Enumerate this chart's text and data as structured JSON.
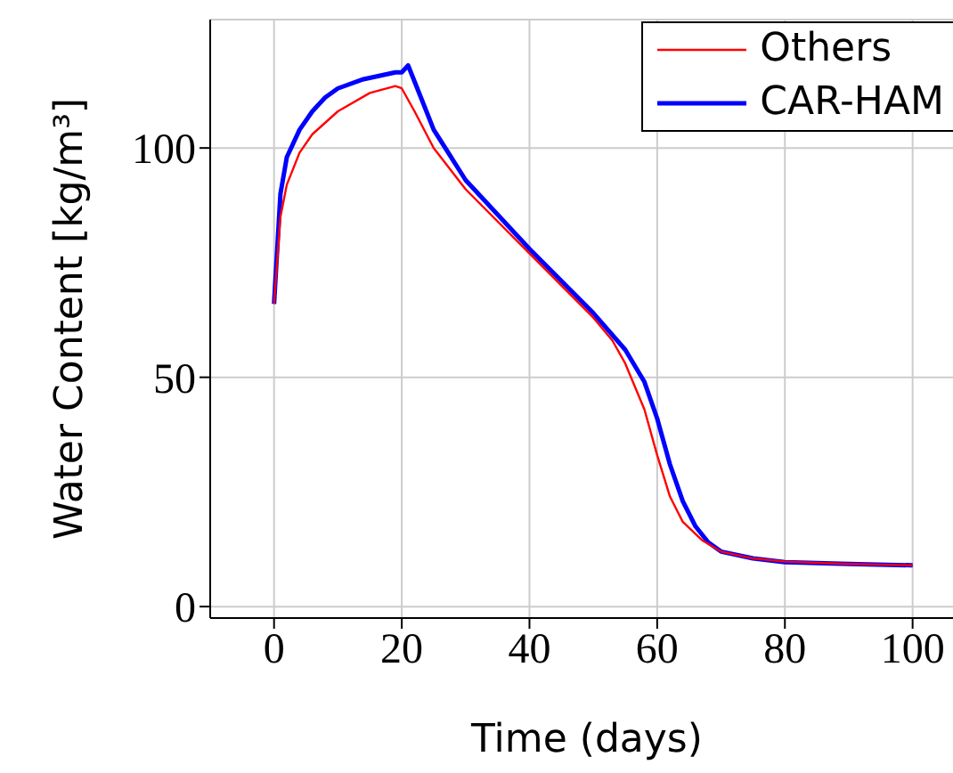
{
  "chart_data": {
    "type": "line",
    "xlabel": "Time (days)",
    "ylabel": "Water Content [kg/m³]",
    "xlim": [
      -10,
      108
    ],
    "ylim": [
      -2.5,
      128
    ],
    "xticks": [
      0,
      20,
      40,
      60,
      80,
      100
    ],
    "yticks": [
      0,
      50,
      100
    ],
    "grid": true,
    "legend": "top right",
    "marker": "none",
    "line_style": "solid",
    "series": [
      {
        "name": "Others",
        "color": "#ff0000",
        "x": [
          0,
          1,
          2,
          4,
          6,
          10,
          15,
          19,
          20,
          22,
          25,
          30,
          40,
          50,
          53,
          55,
          58,
          60,
          62,
          64,
          67,
          70,
          75,
          80,
          90,
          100
        ],
        "values": [
          66,
          85,
          92,
          99,
          103,
          108,
          112,
          113.5,
          113,
          108,
          100,
          91,
          77,
          63,
          58,
          53,
          43,
          33,
          24,
          18.5,
          14.5,
          12,
          10.5,
          9.8,
          9.3,
          9
        ]
      },
      {
        "name": "CAR-HAM",
        "color": "#0000ff",
        "x": [
          0,
          1,
          2,
          4,
          6,
          8,
          10,
          14,
          19,
          20,
          21,
          23,
          25,
          30,
          40,
          50,
          55,
          58,
          60,
          62,
          64,
          66,
          68,
          70,
          75,
          80,
          90,
          100
        ],
        "values": [
          66,
          90,
          98,
          104,
          108,
          111,
          113,
          115,
          116.5,
          116.5,
          118,
          111,
          104,
          93,
          78,
          64,
          56,
          49,
          41,
          31,
          23,
          17.5,
          14,
          12,
          10.5,
          9.7,
          9.3,
          9
        ]
      }
    ]
  }
}
